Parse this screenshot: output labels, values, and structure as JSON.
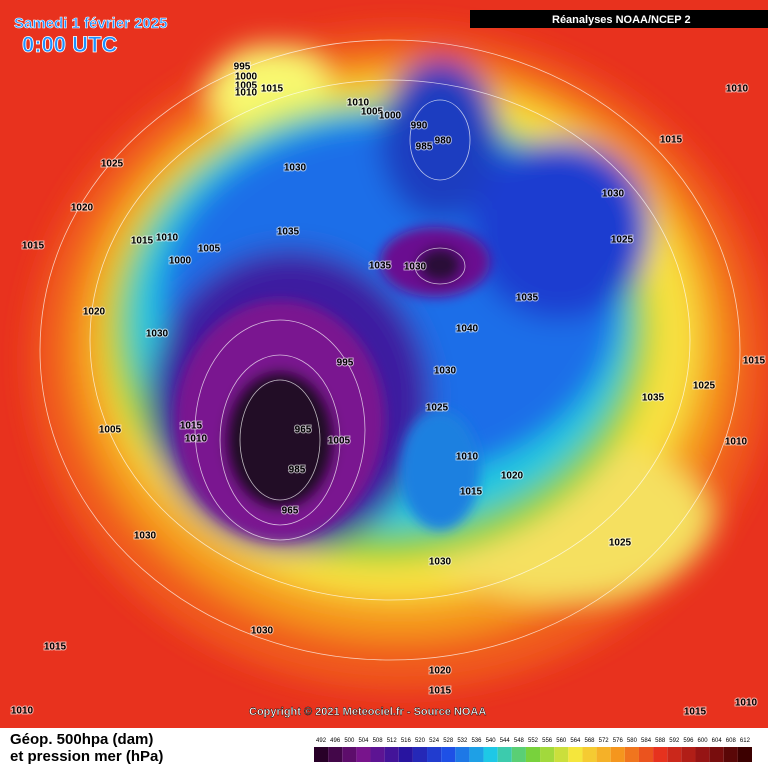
{
  "header": {
    "title": "Samedi 1 février 2025",
    "time": "0:00 UTC",
    "source_banner": "Réanalyses NOAA/NCEP 2"
  },
  "footer": {
    "copyright": "Copyright © 2021 Meteociel.fr - Source NOAA",
    "legend_line1": "Géop. 500hpa (dam)",
    "legend_line2": "et pression mer (hPa)"
  },
  "colorbar": {
    "labels": [
      492,
      496,
      500,
      504,
      508,
      512,
      516,
      520,
      524,
      528,
      532,
      536,
      540,
      544,
      548,
      552,
      556,
      560,
      564,
      568,
      572,
      576,
      580,
      584,
      588,
      592,
      596,
      600,
      604,
      608,
      612
    ]
  },
  "isobar_labels": [
    995,
    1000,
    1005,
    1010,
    1015,
    1010,
    1005,
    1000,
    990,
    980,
    985,
    1010,
    1025,
    1030,
    1020,
    1015,
    1015,
    1010,
    1005,
    1000,
    1035,
    1035,
    1030,
    1035,
    1030,
    1015,
    1025,
    1020,
    1030,
    1040,
    995,
    1030,
    1025,
    1035,
    1015,
    1025,
    1005,
    1015,
    1010,
    965,
    1005,
    985,
    965,
    1010,
    1020,
    1015,
    1025,
    1030,
    1030,
    1030,
    1015,
    1020,
    1015,
    1010,
    1015,
    1010,
    1010
  ]
}
